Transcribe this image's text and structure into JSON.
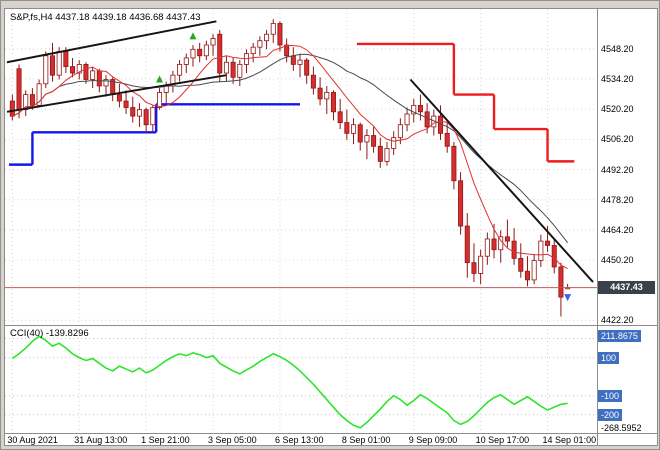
{
  "window": {
    "title_overlay": "S&P,fs,H4 4437.18 4439.18 4436.68 4437.43"
  },
  "chart_data": {
    "type": "candlestick",
    "symbol": "S&P,fs",
    "timeframe": "H4",
    "ohlc_readout": {
      "open": "4437.18",
      "high": "4439.18",
      "low": "4436.68",
      "close": "4437.43"
    },
    "price_axis": {
      "ticks": [
        "4548.20",
        "4534.20",
        "4520.20",
        "4506.20",
        "4492.20",
        "4478.20",
        "4464.20",
        "4450.20",
        "4422.20"
      ],
      "current_price": "4437.43",
      "ylim": [
        4421,
        4563
      ]
    },
    "time_axis": {
      "labels": [
        "30 Aug 2021",
        "31 Aug 13:00",
        "1 Sep 21:00",
        "3 Sep 05:00",
        "6 Sep 13:00",
        "8 Sep 01:00",
        "9 Sep 09:00",
        "10 Sep 17:00",
        "14 Sep 01:00"
      ],
      "tick_bars": [
        0,
        10,
        20,
        30,
        40,
        50,
        60,
        70,
        80
      ]
    },
    "candles": [
      [
        4524,
        4527,
        4515,
        4517
      ],
      [
        4539,
        4541,
        4516,
        4520
      ],
      [
        4520,
        4529,
        4517,
        4527
      ],
      [
        4527,
        4530,
        4520,
        4522
      ],
      [
        4522,
        4534,
        4521,
        4532
      ],
      [
        4532,
        4547,
        4530,
        4545
      ],
      [
        4545,
        4551,
        4533,
        4536
      ],
      [
        4536,
        4549,
        4534,
        4547
      ],
      [
        4547,
        4549,
        4537,
        4540
      ],
      [
        4540,
        4544,
        4535,
        4537
      ],
      [
        4537,
        4543,
        4534,
        4541
      ],
      [
        4541,
        4542,
        4532,
        4534
      ],
      [
        4534,
        4540,
        4530,
        4538
      ],
      [
        4538,
        4539,
        4528,
        4531
      ],
      [
        4531,
        4536,
        4526,
        4534
      ],
      [
        4534,
        4535,
        4524,
        4527
      ],
      [
        4527,
        4532,
        4521,
        4524
      ],
      [
        4524,
        4529,
        4518,
        4521
      ],
      [
        4521,
        4526,
        4514,
        4517
      ],
      [
        4517,
        4523,
        4512,
        4520
      ],
      [
        4520,
        4521,
        4509,
        4513
      ],
      [
        4513,
        4522,
        4510,
        4521
      ],
      [
        4521,
        4530,
        4520,
        4528
      ],
      [
        4528,
        4533,
        4523,
        4531
      ],
      [
        4531,
        4538,
        4528,
        4536
      ],
      [
        4536,
        4543,
        4533,
        4541
      ],
      [
        4541,
        4546,
        4537,
        4544
      ],
      [
        4544,
        4550,
        4540,
        4548
      ],
      [
        4548,
        4551,
        4542,
        4545
      ],
      [
        4545,
        4552,
        4543,
        4550
      ],
      [
        4550,
        4555,
        4545,
        4553
      ],
      [
        4555,
        4557,
        4533,
        4537
      ],
      [
        4537,
        4545,
        4533,
        4542
      ],
      [
        4542,
        4544,
        4532,
        4535
      ],
      [
        4535,
        4543,
        4531,
        4541
      ],
      [
        4541,
        4548,
        4537,
        4546
      ],
      [
        4546,
        4551,
        4542,
        4549
      ],
      [
        4549,
        4554,
        4545,
        4552
      ],
      [
        4552,
        4557,
        4548,
        4555
      ],
      [
        4555,
        4562,
        4551,
        4560
      ],
      [
        4560,
        4561,
        4547,
        4550
      ],
      [
        4550,
        4553,
        4542,
        4545
      ],
      [
        4545,
        4549,
        4538,
        4541
      ],
      [
        4541,
        4546,
        4535,
        4543
      ],
      [
        4543,
        4544,
        4532,
        4536
      ],
      [
        4536,
        4540,
        4527,
        4530
      ],
      [
        4530,
        4535,
        4522,
        4525
      ],
      [
        4525,
        4531,
        4518,
        4528
      ],
      [
        4528,
        4529,
        4515,
        4519
      ],
      [
        4519,
        4525,
        4511,
        4514
      ],
      [
        4514,
        4520,
        4506,
        4509
      ],
      [
        4509,
        4516,
        4504,
        4513
      ],
      [
        4513,
        4514,
        4501,
        4505
      ],
      [
        4505,
        4511,
        4497,
        4508
      ],
      [
        4508,
        4512,
        4500,
        4503
      ],
      [
        4503,
        4507,
        4493,
        4496
      ],
      [
        4496,
        4505,
        4494,
        4502
      ],
      [
        4502,
        4510,
        4499,
        4507
      ],
      [
        4507,
        4516,
        4504,
        4513
      ],
      [
        4513,
        4521,
        4510,
        4518
      ],
      [
        4518,
        4525,
        4514,
        4522
      ],
      [
        4522,
        4527,
        4515,
        4519
      ],
      [
        4519,
        4523,
        4509,
        4512
      ],
      [
        4512,
        4520,
        4508,
        4517
      ],
      [
        4517,
        4522,
        4506,
        4509
      ],
      [
        4509,
        4515,
        4500,
        4503
      ],
      [
        4503,
        4505,
        4483,
        4487
      ],
      [
        4487,
        4491,
        4462,
        4466
      ],
      [
        4466,
        4472,
        4442,
        4449
      ],
      [
        4449,
        4458,
        4440,
        4444
      ],
      [
        4444,
        4455,
        4439,
        4452
      ],
      [
        4452,
        4463,
        4448,
        4460
      ],
      [
        4460,
        4467,
        4451,
        4455
      ],
      [
        4455,
        4464,
        4449,
        4461
      ],
      [
        4461,
        4469,
        4456,
        4459
      ],
      [
        4459,
        4465,
        4448,
        4451
      ],
      [
        4451,
        4458,
        4442,
        4445
      ],
      [
        4445,
        4452,
        4438,
        4441
      ],
      [
        4441,
        4453,
        4439,
        4450
      ],
      [
        4450,
        4462,
        4447,
        4459
      ],
      [
        4459,
        4466,
        4454,
        4457
      ],
      [
        4457,
        4460,
        4444,
        4447
      ],
      [
        4447,
        4449,
        4424,
        4433
      ],
      [
        4437.18,
        4439.18,
        4436.68,
        4437.43
      ]
    ],
    "candle_colors": {
      "bear_fill": "#d62e2e",
      "bull_fill": "#ffffff",
      "stroke": "#8e1616"
    },
    "overlays": {
      "ma_fast": {
        "period": 8,
        "color": "#e03232"
      },
      "ma_slow": {
        "period": 20,
        "color": "#4a4a4a"
      },
      "support_steps": {
        "color": "#1414ee",
        "width": 2.4,
        "segments": [
          [
            0,
            3.5,
            4494.5
          ],
          [
            3.5,
            22,
            4509.5
          ],
          [
            22,
            43.5,
            4522.5
          ]
        ]
      },
      "resistance_steps": {
        "color": "#ee1c1c",
        "width": 2.4,
        "segments": [
          [
            52,
            66.5,
            4550.5
          ],
          [
            66.5,
            72.5,
            4527
          ],
          [
            72.5,
            80.5,
            4511
          ],
          [
            80.5,
            84.5,
            4496
          ]
        ]
      },
      "trendlines": {
        "color": "#161616",
        "width": 2,
        "lines": [
          [
            -0.3,
            4542,
            31,
            4561
          ],
          [
            -0.3,
            4519,
            32.5,
            4536
          ],
          [
            60,
            4534,
            87.3,
            4440
          ]
        ]
      },
      "price_line": {
        "value": 4437.43,
        "color": "#c05a5a"
      }
    },
    "markers": [
      {
        "bar": 22,
        "price": 4534,
        "dir": "up",
        "color": "#1faa1f"
      },
      {
        "bar": 27,
        "price": 4554,
        "dir": "up",
        "color": "#1faa1f"
      },
      {
        "bar": 83,
        "price": 4433,
        "dir": "down",
        "color": "#3c64e8"
      }
    ],
    "cci": {
      "label": "CCI(40) -139.8296",
      "period": 40,
      "current": -139.8296,
      "color": "#2ee52e",
      "levels": [
        200,
        100,
        -100,
        -200
      ],
      "axis_chips": [
        {
          "text": "211.8675",
          "value": 211.8675
        },
        {
          "text": "100",
          "value": 100
        },
        {
          "text": "-100",
          "value": -100
        },
        {
          "text": "-200",
          "value": -200
        }
      ],
      "max_label": "211.8675",
      "min_label": "-268.5952",
      "ylim": [
        -285,
        250
      ],
      "values": [
        95,
        120,
        150,
        185,
        211.8675,
        190,
        160,
        175,
        150,
        120,
        100,
        85,
        95,
        70,
        45,
        30,
        55,
        40,
        25,
        45,
        20,
        35,
        60,
        85,
        105,
        120,
        110,
        125,
        115,
        100,
        110,
        70,
        50,
        30,
        15,
        35,
        55,
        80,
        100,
        120,
        105,
        85,
        60,
        30,
        -5,
        -40,
        -80,
        -120,
        -160,
        -200,
        -230,
        -255,
        -268.5952,
        -240,
        -205,
        -170,
        -130,
        -100,
        -120,
        -150,
        -125,
        -95,
        -115,
        -140,
        -165,
        -190,
        -230,
        -250,
        -235,
        -205,
        -170,
        -135,
        -110,
        -95,
        -120,
        -145,
        -125,
        -105,
        -130,
        -155,
        -175,
        -160,
        -145,
        -139.8296
      ]
    }
  },
  "colors": {
    "frame_bg": "#d6d3ce",
    "chart_bg": "#ffffff",
    "grid": "#d4d4d4",
    "separator": "#8c8c8c",
    "axis_text": "#000000",
    "badge_bg": "#3a414b",
    "badge_text": "#ffffff",
    "level_chip_bg": "#3f6fc0",
    "level_chip_text": "#ffffff"
  }
}
